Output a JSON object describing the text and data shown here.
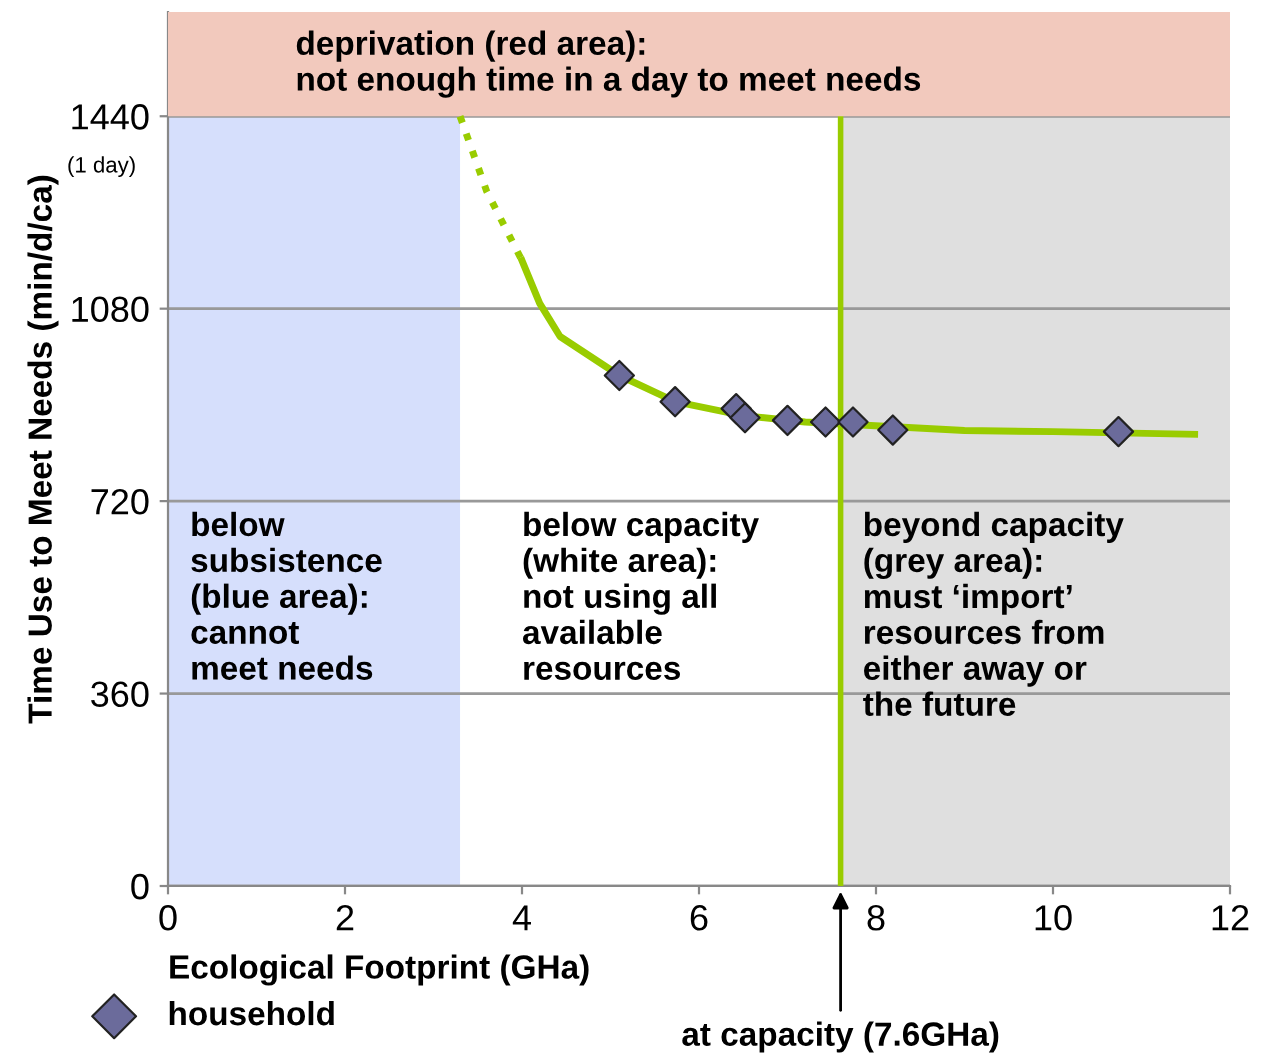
{
  "chart_data": {
    "type": "scatter",
    "xlabel": "Ecological Footprint (GHa)",
    "ylabel": "Time Use to Meet Needs (min/d/ca)",
    "xlim": [
      0,
      12
    ],
    "xticks": [
      0,
      2,
      4,
      6,
      8,
      10,
      12
    ],
    "ylim": [
      0,
      1635
    ],
    "yticks": [
      0,
      360,
      720,
      1080,
      1440
    ],
    "grid": "y",
    "legend": "bottom left",
    "series": [
      {
        "type": "line",
        "color": "#99cc00",
        "line_style": "dotted",
        "marker": "none",
        "x": [
          3.3,
          3.6,
          4.0
        ],
        "values": [
          1440,
          1300,
          1170
        ]
      },
      {
        "type": "line",
        "color": "#99cc00",
        "line_style": "solid",
        "marker": "none",
        "x": [
          4.0,
          4.2,
          4.43,
          5.1,
          5.73,
          6.5,
          7.2,
          9.0,
          10.0,
          11.6
        ],
        "values": [
          1170,
          1090,
          1028,
          955,
          906,
          880,
          868,
          852,
          850,
          845
        ]
      },
      {
        "name": "household",
        "color": "#6b6b9b",
        "marker": "diamond",
        "x": [
          5.1,
          5.73,
          6.42,
          6.52,
          7.0,
          7.43,
          7.74,
          8.19,
          10.74
        ],
        "values": [
          955,
          906,
          893,
          876,
          871,
          868,
          868,
          853,
          850
        ]
      }
    ],
    "bands": [
      {
        "axis": "x",
        "from": 0,
        "to": 3.3,
        "color": "#d6dffc",
        "label": "below\nsubsistence\n(blue area):\ncannot\nmeet needs"
      },
      {
        "axis": "x",
        "from": 7.6,
        "to": 12,
        "color": "#dfdfdf",
        "label": "beyond capacity\n(grey area):\nmust ‘import’\nresources from\neither away or\nthe future"
      },
      {
        "axis": "y",
        "from": 1440,
        "to": 1635,
        "color": "#f2c9bd",
        "label": "deprivation (red area):\nnot enough time in a day to meet needs"
      }
    ],
    "ref_lines": [
      {
        "axis": "x",
        "value": 7.6,
        "color": "#99cc00",
        "label": "at capacity (7.6GHa)"
      }
    ],
    "annotations": [
      "(1 day)",
      "below capacity\n(white area):\nnot using all\navailable\nresources"
    ]
  }
}
